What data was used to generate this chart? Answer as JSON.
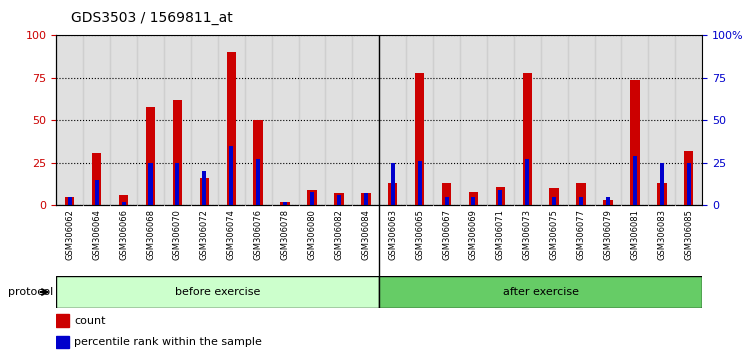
{
  "title": "GDS3503 / 1569811_at",
  "categories": [
    "GSM306062",
    "GSM306064",
    "GSM306066",
    "GSM306068",
    "GSM306070",
    "GSM306072",
    "GSM306074",
    "GSM306076",
    "GSM306078",
    "GSM306080",
    "GSM306082",
    "GSM306084",
    "GSM306063",
    "GSM306065",
    "GSM306067",
    "GSM306069",
    "GSM306071",
    "GSM306073",
    "GSM306075",
    "GSM306077",
    "GSM306079",
    "GSM306081",
    "GSM306083",
    "GSM306085"
  ],
  "count_values": [
    5,
    31,
    6,
    58,
    62,
    16,
    90,
    50,
    2,
    9,
    7,
    7,
    13,
    78,
    13,
    8,
    11,
    78,
    10,
    13,
    3,
    74,
    13,
    32
  ],
  "percentile_values": [
    5,
    15,
    2,
    25,
    25,
    20,
    35,
    27,
    2,
    8,
    6,
    7,
    25,
    26,
    5,
    5,
    9,
    27,
    5,
    5,
    5,
    29,
    25,
    25
  ],
  "group1_label": "before exercise",
  "group2_label": "after exercise",
  "group1_count": 12,
  "group2_count": 12,
  "protocol_label": "protocol",
  "count_color": "#cc0000",
  "percentile_color": "#0000cc",
  "group1_color": "#ccffcc",
  "group2_color": "#66cc66",
  "cell_bg_color": "#cccccc",
  "plot_bg_color": "#ffffff",
  "ylim": [
    0,
    100
  ],
  "yticks": [
    0,
    25,
    50,
    75,
    100
  ],
  "title_fontsize": 10,
  "tick_fontsize": 8,
  "label_fontsize": 6,
  "legend_fontsize": 8,
  "protocol_fontsize": 8
}
